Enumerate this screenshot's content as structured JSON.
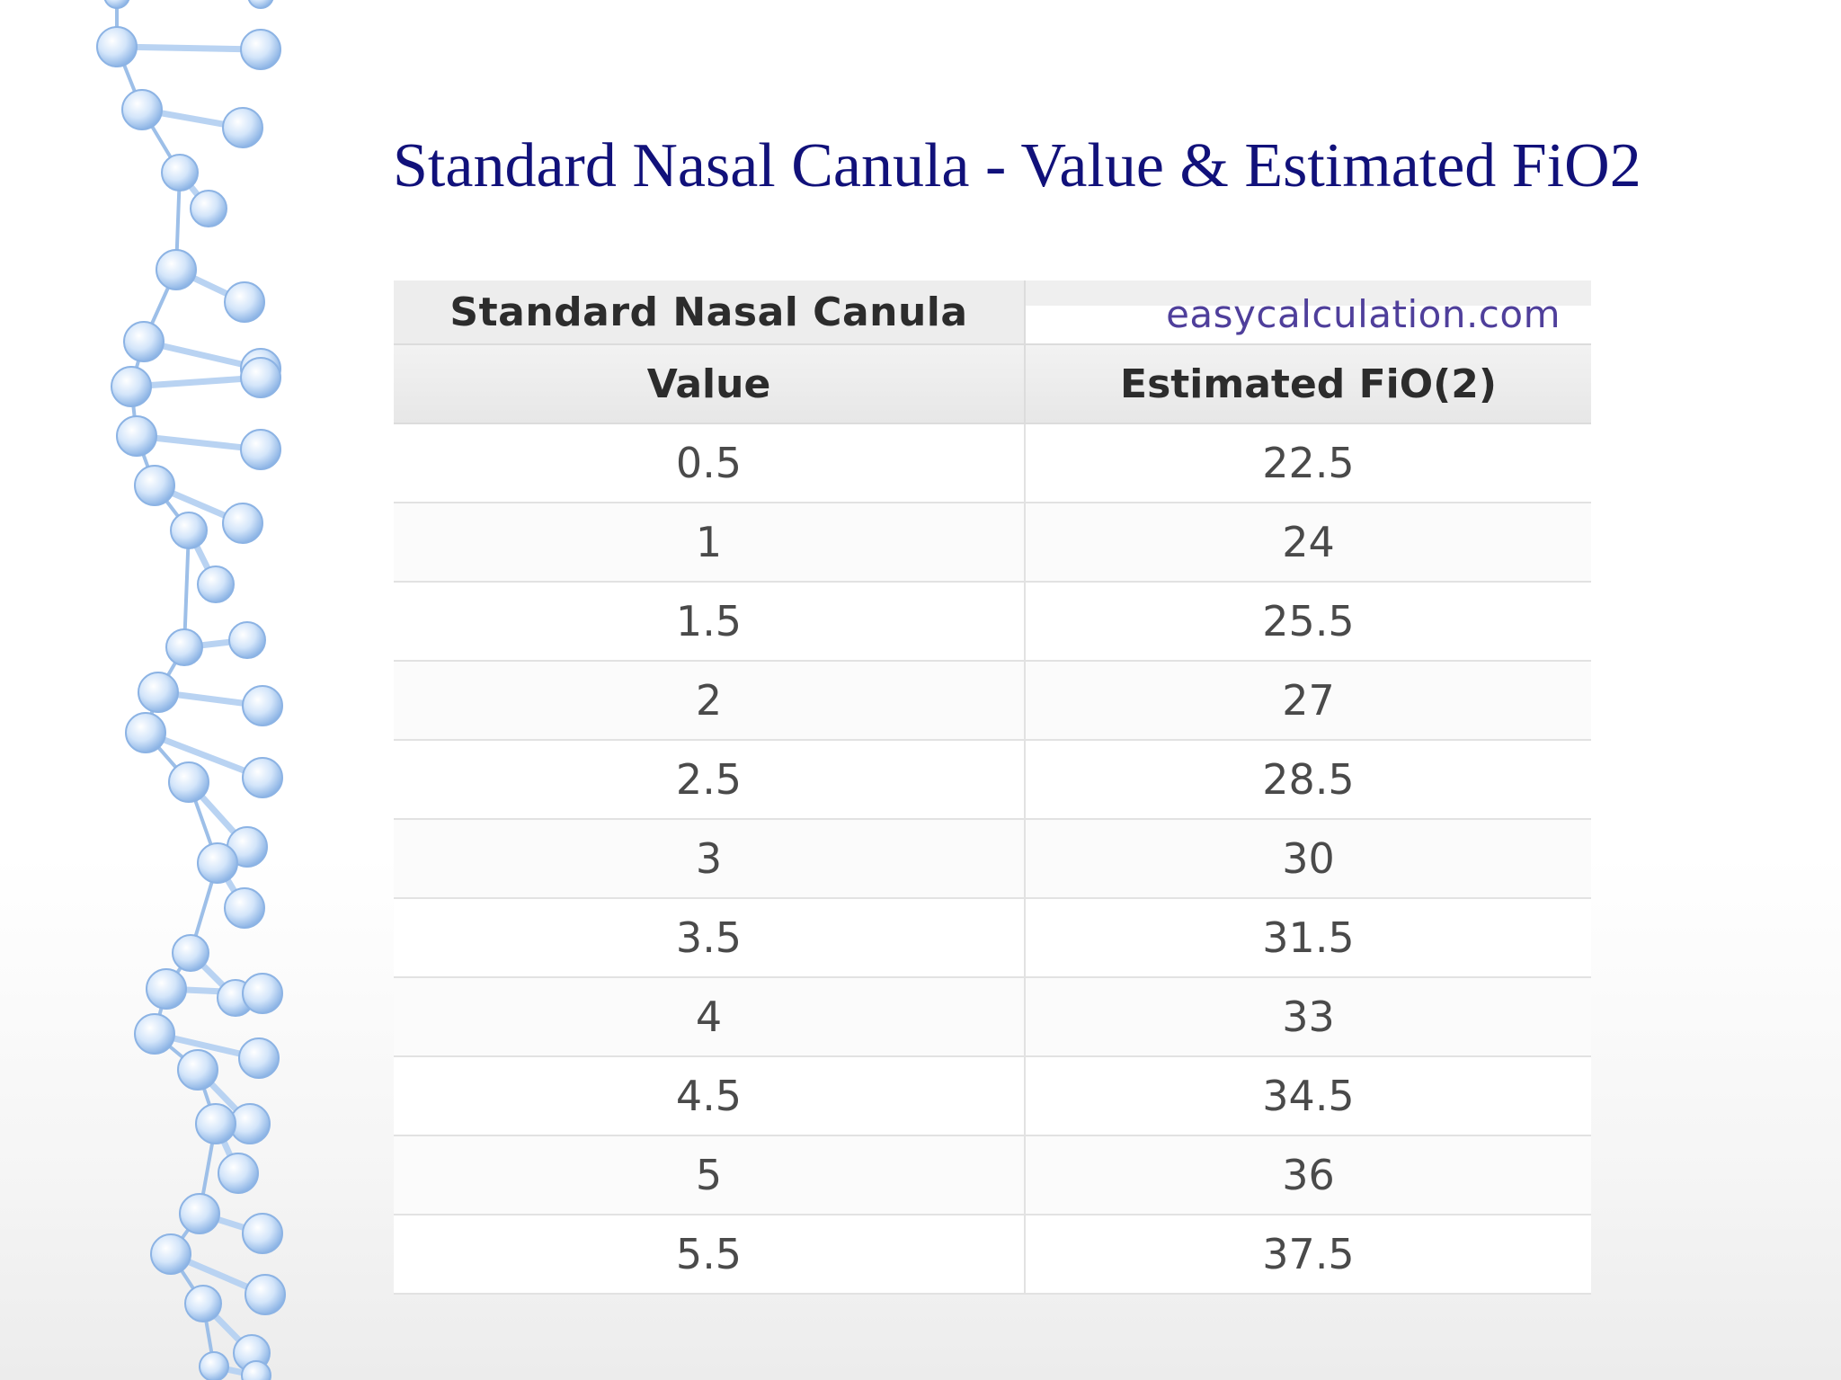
{
  "slide": {
    "title": "Standard Nasal Canula - Value & Estimated FiO2"
  },
  "table": {
    "caption_left": "Standard Nasal Canula",
    "caption_right": "easycalculation.com",
    "headers": [
      "Value",
      "Estimated FiO(2)"
    ],
    "rows": [
      [
        "0.5",
        "22.5"
      ],
      [
        "1",
        "24"
      ],
      [
        "1.5",
        "25.5"
      ],
      [
        "2",
        "27"
      ],
      [
        "2.5",
        "28.5"
      ],
      [
        "3",
        "30"
      ],
      [
        "3.5",
        "31.5"
      ],
      [
        "4",
        "33"
      ],
      [
        "4.5",
        "34.5"
      ],
      [
        "5",
        "36"
      ],
      [
        "5.5",
        "37.5"
      ]
    ]
  },
  "decoration": {
    "icon": "dna-molecule-strand",
    "color": "#a8c8ef"
  }
}
